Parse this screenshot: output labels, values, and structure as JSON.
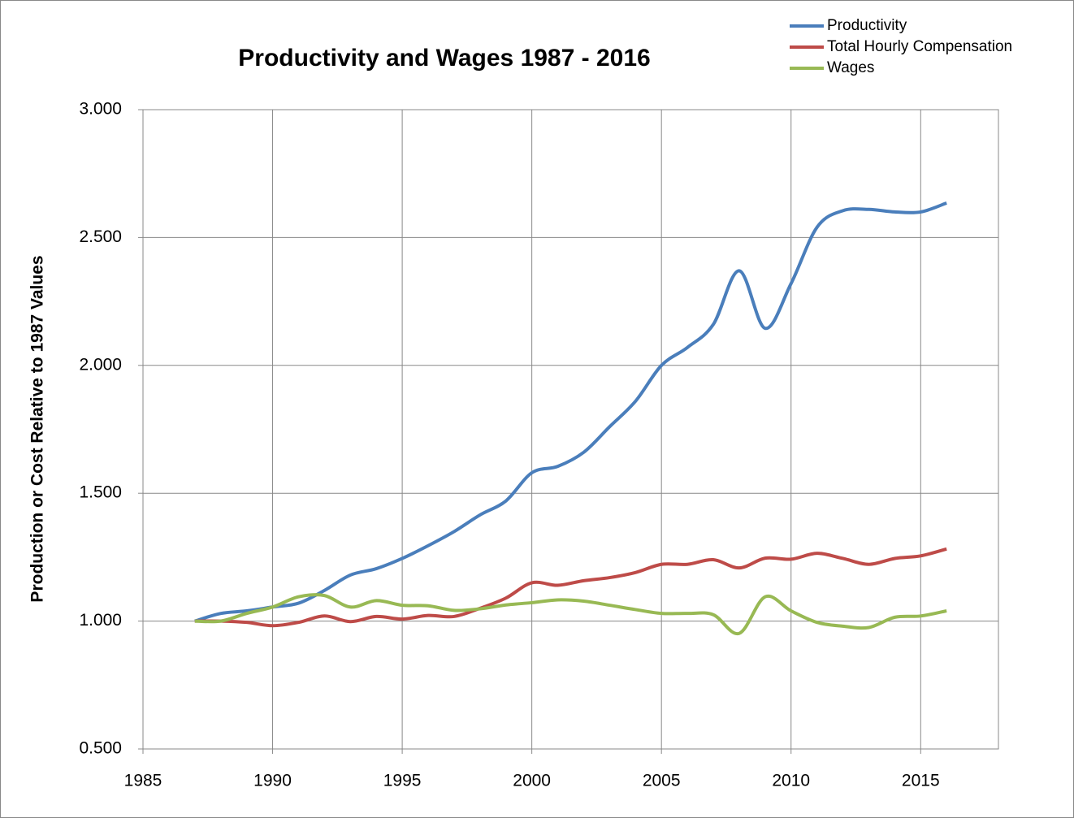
{
  "chart_data": {
    "type": "line",
    "title": "Productivity and Wages 1987 - 2016",
    "y_label": "Production  or  Cost  Relative  to  1987  Values",
    "x": [
      1987,
      1988,
      1989,
      1990,
      1991,
      1992,
      1993,
      1994,
      1995,
      1996,
      1997,
      1998,
      1999,
      2000,
      2001,
      2002,
      2003,
      2004,
      2005,
      2006,
      2007,
      2008,
      2009,
      2010,
      2011,
      2012,
      2013,
      2014,
      2015,
      2016
    ],
    "series": [
      {
        "name": "Productivity",
        "color": "#4a7ebb",
        "values": [
          1.0,
          1.03,
          1.04,
          1.055,
          1.07,
          1.12,
          1.18,
          1.205,
          1.245,
          1.295,
          1.35,
          1.415,
          1.47,
          1.58,
          1.605,
          1.66,
          1.76,
          1.86,
          2.0,
          2.07,
          2.16,
          2.37,
          2.145,
          2.32,
          2.54,
          2.605,
          2.61,
          2.6,
          2.6,
          2.635
        ]
      },
      {
        "name": "Total Hourly Compensation",
        "color": "#be4b48",
        "values": [
          1.0,
          1.0,
          0.995,
          0.982,
          0.995,
          1.02,
          0.998,
          1.018,
          1.008,
          1.022,
          1.018,
          1.05,
          1.09,
          1.15,
          1.14,
          1.158,
          1.17,
          1.19,
          1.222,
          1.222,
          1.24,
          1.208,
          1.246,
          1.242,
          1.265,
          1.245,
          1.222,
          1.245,
          1.255,
          1.282
        ]
      },
      {
        "name": "Wages",
        "color": "#98b954",
        "values": [
          1.0,
          1.0,
          1.03,
          1.055,
          1.095,
          1.1,
          1.055,
          1.08,
          1.062,
          1.06,
          1.042,
          1.048,
          1.063,
          1.072,
          1.083,
          1.078,
          1.062,
          1.045,
          1.03,
          1.03,
          1.025,
          0.952,
          1.095,
          1.04,
          0.995,
          0.98,
          0.975,
          1.015,
          1.02,
          1.04
        ]
      }
    ],
    "xlim": [
      1985,
      2018
    ],
    "xticks": [
      1985,
      1990,
      1995,
      2000,
      2005,
      2010,
      2015
    ],
    "ylim": [
      0.5,
      3.0
    ],
    "yticks": [
      {
        "value": 0.5,
        "label": "0.500"
      },
      {
        "value": 1.0,
        "label": "1.000"
      },
      {
        "value": 1.5,
        "label": "1.500"
      },
      {
        "value": 2.0,
        "label": "2.000"
      },
      {
        "value": 2.5,
        "label": "2.500"
      },
      {
        "value": 3.0,
        "label": "3.000"
      }
    ],
    "grid": true,
    "legend": "top-right"
  }
}
